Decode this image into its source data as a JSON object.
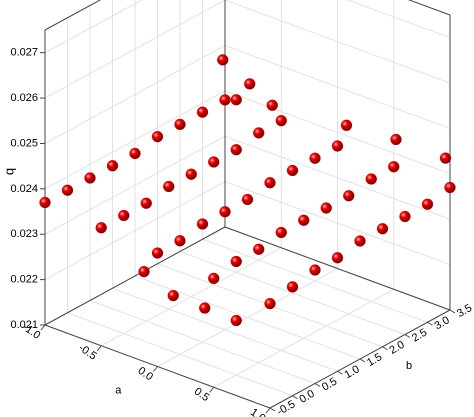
{
  "chart_data": {
    "type": "scatter3d",
    "xlabel": "a",
    "ylabel": "b",
    "zlabel": "q",
    "xlim": [
      -1,
      1
    ],
    "ylim": [
      -0.5,
      3.5
    ],
    "zlim": [
      0.021,
      0.0275
    ],
    "xticks": [
      {
        "value": -1,
        "label": "-1.0"
      },
      {
        "value": -0.5,
        "label": "-0.5"
      },
      {
        "value": 0,
        "label": "0.0"
      },
      {
        "value": 0.5,
        "label": "0.5"
      },
      {
        "value": 1,
        "label": "1.0"
      }
    ],
    "yticks": [
      {
        "value": -0.5,
        "label": "-0.5"
      },
      {
        "value": 0,
        "label": "0.0"
      },
      {
        "value": 0.5,
        "label": "0.5"
      },
      {
        "value": 1,
        "label": "1.0"
      },
      {
        "value": 1.5,
        "label": "1.5"
      },
      {
        "value": 2,
        "label": "2.0"
      },
      {
        "value": 2.5,
        "label": "2.5"
      },
      {
        "value": 3,
        "label": "3.0"
      },
      {
        "value": 3.5,
        "label": "3.5"
      }
    ],
    "zticks": [
      0.021,
      0.022,
      0.023,
      0.024,
      0.025,
      0.026,
      0.027
    ],
    "grid": true,
    "color": "#e00000",
    "x": [
      -1,
      -0.5,
      0,
      0.5,
      1,
      -1,
      -0.5,
      0,
      0.5,
      1,
      -1,
      -0.5,
      0,
      0.5,
      1,
      -1,
      -0.5,
      0,
      0.5,
      1,
      -1,
      -0.5,
      0,
      0.5,
      1,
      -1,
      -0.5,
      0,
      0.5,
      1,
      -1,
      -0.5,
      0,
      0.5,
      1,
      -1,
      -0.5,
      0,
      0.5,
      1,
      -1,
      -0.5,
      0,
      0.5,
      1,
      0.1,
      0.3,
      -0.5,
      -0.3,
      0.2,
      0.6,
      1,
      -0.2,
      0.1,
      0.3,
      0.5
    ],
    "y": [
      3.5,
      3.5,
      3.5,
      3.5,
      3.5,
      3,
      3,
      3,
      3,
      3,
      2.5,
      2.5,
      2.5,
      2.5,
      2.5,
      2,
      2,
      2,
      2,
      2,
      1.5,
      1.5,
      1.5,
      1.5,
      1.5,
      1,
      1,
      1,
      1,
      1,
      0.5,
      0.5,
      0.5,
      0.5,
      0.5,
      0,
      0,
      0,
      0,
      0,
      -0.5,
      -0.5,
      -0.5,
      -0.5,
      -0.5,
      0.7,
      0.8,
      2.5,
      2.8,
      3.2,
      3.3,
      3.4,
      -0.3,
      -0.4,
      -0.2,
      0
    ],
    "z": [
      0.0238,
      0.0238,
      0.0237,
      0.0237,
      0.0237,
      0.0238,
      0.0238,
      0.0237,
      0.0237,
      0.0236,
      0.0238,
      0.0237,
      0.0237,
      0.0236,
      0.0236,
      0.0238,
      0.0237,
      0.0237,
      0.0236,
      0.0236,
      0.0237,
      0.0237,
      0.0236,
      0.0236,
      0.0236,
      0.0237,
      0.0237,
      0.0236,
      0.0236,
      0.0235,
      0.0237,
      0.0236,
      0.0236,
      0.0235,
      0.0235,
      0.0237,
      0.0236,
      0.0235,
      0.0235,
      0.0234,
      0.0237,
      0.0236,
      0.0235,
      0.0234,
      0.0233,
      0.0272,
      0.0268,
      0.0248,
      0.0247,
      0.0245,
      0.0245,
      0.0244,
      0.0228,
      0.0226,
      0.0224,
      0.0222
    ]
  }
}
